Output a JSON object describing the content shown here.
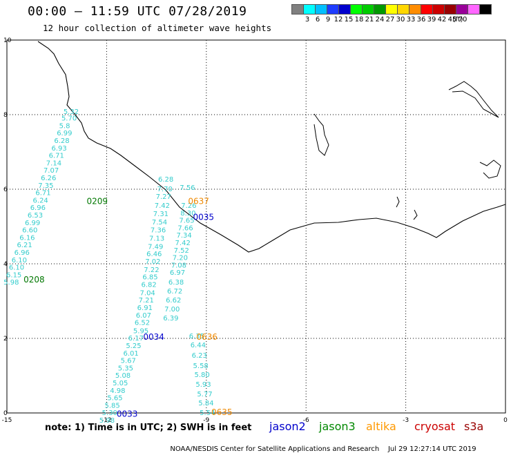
{
  "header": {
    "title": "00:00 — 11:59 UTC 07/28/2019",
    "subtitle": "12 hour collection of altimeter wave heights"
  },
  "color_scale": {
    "bins": [
      {
        "label": "",
        "color": "#808080"
      },
      {
        "label": "3",
        "color": "#00ffff"
      },
      {
        "label": "6",
        "color": "#00bfff"
      },
      {
        "label": "9",
        "color": "#1e3cff"
      },
      {
        "label": "12",
        "color": "#0000cd"
      },
      {
        "label": "15",
        "color": "#00ff00"
      },
      {
        "label": "18",
        "color": "#00cc00"
      },
      {
        "label": "21",
        "color": "#009900"
      },
      {
        "label": "24",
        "color": "#ffff00"
      },
      {
        "label": "27",
        "color": "#ffd700"
      },
      {
        "label": "30",
        "color": "#ff8c00"
      },
      {
        "label": "33",
        "color": "#ff0000"
      },
      {
        "label": "36",
        "color": "#cc0000"
      },
      {
        "label": "39",
        "color": "#990000"
      },
      {
        "label": "42",
        "color": "#990099"
      },
      {
        "label": "45",
        "color": "#ff66ff"
      },
      {
        "label": "70",
        "color": "#000000"
      }
    ],
    "unit": "(ft)"
  },
  "axes": {
    "x_ticks": [
      "-15",
      "-12",
      "-9",
      "-6",
      "-3",
      "0"
    ],
    "y_ticks": [
      "0",
      "2",
      "4",
      "6",
      "8",
      "10"
    ],
    "x_range": [
      -15,
      0
    ],
    "y_range": [
      0,
      10
    ],
    "grid": "dotted"
  },
  "tracks": [
    {
      "label": "0209",
      "color": "#007700",
      "label_at": [
        -12.6,
        5.6
      ],
      "points": [
        {
          "lon": -13.3,
          "lat": 8.02,
          "swh": "5.32"
        },
        {
          "lon": -13.36,
          "lat": 7.84,
          "swh": "5.70"
        },
        {
          "lon": -13.43,
          "lat": 7.64,
          "swh": "5.8"
        },
        {
          "lon": -13.5,
          "lat": 7.44,
          "swh": "6.99"
        },
        {
          "lon": -13.58,
          "lat": 7.24,
          "swh": "6.28"
        },
        {
          "lon": -13.66,
          "lat": 7.04,
          "swh": "6.93"
        },
        {
          "lon": -13.74,
          "lat": 6.84,
          "swh": "6.71"
        },
        {
          "lon": -13.82,
          "lat": 6.64,
          "swh": "7.14"
        },
        {
          "lon": -13.9,
          "lat": 6.44,
          "swh": "7.07"
        },
        {
          "lon": -13.98,
          "lat": 6.24,
          "swh": "6.26"
        },
        {
          "lon": -14.06,
          "lat": 6.04,
          "swh": "7.35"
        },
        {
          "lon": -14.14,
          "lat": 5.84,
          "swh": "6.71"
        },
        {
          "lon": -14.22,
          "lat": 5.64,
          "swh": "6.24"
        },
        {
          "lon": -14.3,
          "lat": 5.44,
          "swh": "6.96"
        },
        {
          "lon": -14.38,
          "lat": 5.24,
          "swh": "6.53"
        },
        {
          "lon": -14.46,
          "lat": 5.04,
          "swh": "6.99"
        },
        {
          "lon": -14.54,
          "lat": 4.84,
          "swh": "6.60"
        },
        {
          "lon": -14.62,
          "lat": 4.64,
          "swh": "6.16"
        },
        {
          "lon": -14.7,
          "lat": 4.44,
          "swh": "6.21"
        },
        {
          "lon": -14.78,
          "lat": 4.24,
          "swh": "6.96"
        },
        {
          "lon": -14.86,
          "lat": 4.04,
          "swh": "6.10"
        },
        {
          "lon": -14.94,
          "lat": 3.84,
          "swh": "6.10"
        },
        {
          "lon": -15.02,
          "lat": 3.64,
          "swh": "6.15"
        },
        {
          "lon": -15.1,
          "lat": 3.44,
          "swh": "5.98"
        }
      ]
    },
    {
      "label": "0208",
      "color": "#007700",
      "label_at": [
        -14.5,
        3.5
      ],
      "points": []
    },
    {
      "label": "0637",
      "color": "#ee8800",
      "label_at": [
        -9.55,
        5.6
      ],
      "points": [
        {
          "lon": -9.8,
          "lat": 5.98,
          "swh": "7.56"
        },
        {
          "lon": -9.76,
          "lat": 5.5,
          "swh": "7.26"
        },
        {
          "lon": -9.78,
          "lat": 5.3,
          "swh": "8.30"
        },
        {
          "lon": -9.82,
          "lat": 5.1,
          "swh": "7.65"
        },
        {
          "lon": -9.86,
          "lat": 4.9,
          "swh": "7.66"
        },
        {
          "lon": -9.9,
          "lat": 4.7,
          "swh": "7.34"
        },
        {
          "lon": -9.94,
          "lat": 4.5,
          "swh": "7.42"
        },
        {
          "lon": -9.98,
          "lat": 4.3,
          "swh": "7.52"
        },
        {
          "lon": -10.02,
          "lat": 4.1,
          "swh": "7.20"
        },
        {
          "lon": -10.06,
          "lat": 3.9,
          "swh": "7.08"
        },
        {
          "lon": -10.1,
          "lat": 3.7,
          "swh": "6.97"
        },
        {
          "lon": -10.14,
          "lat": 3.44,
          "swh": "6.38"
        },
        {
          "lon": -10.18,
          "lat": 3.2,
          "swh": "6.72"
        },
        {
          "lon": -10.22,
          "lat": 2.96,
          "swh": "6.62"
        },
        {
          "lon": -10.26,
          "lat": 2.72,
          "swh": "7.00"
        },
        {
          "lon": -10.3,
          "lat": 2.48,
          "swh": "6.39"
        }
      ]
    },
    {
      "label": "0636",
      "color": "#ee8800",
      "label_at": [
        -9.3,
        1.96
      ],
      "points": [
        {
          "lon": -9.52,
          "lat": 2.0,
          "swh": "6.35"
        },
        {
          "lon": -9.48,
          "lat": 1.76,
          "swh": "6.44"
        },
        {
          "lon": -9.44,
          "lat": 1.48,
          "swh": "6.23"
        },
        {
          "lon": -9.4,
          "lat": 1.2,
          "swh": "5.58"
        },
        {
          "lon": -9.36,
          "lat": 0.96,
          "swh": "5.80"
        },
        {
          "lon": -9.32,
          "lat": 0.7,
          "swh": "5.93"
        },
        {
          "lon": -9.28,
          "lat": 0.44,
          "swh": "5.77"
        },
        {
          "lon": -9.24,
          "lat": 0.2,
          "swh": "5.84"
        },
        {
          "lon": -9.2,
          "lat": -0.06,
          "swh": "5.54"
        }
      ]
    },
    {
      "label": "0635",
      "color": "#ee8800",
      "label_at": [
        -8.85,
        -0.06
      ],
      "points": []
    },
    {
      "label": "0035",
      "color": "#0000cc",
      "label_at": [
        -9.4,
        5.18
      ],
      "points": [
        {
          "lon": -10.45,
          "lat": 6.2,
          "swh": "6.28"
        },
        {
          "lon": -10.48,
          "lat": 5.94,
          "swh": "7.70"
        },
        {
          "lon": -10.52,
          "lat": 5.74,
          "swh": "7.27"
        },
        {
          "lon": -10.56,
          "lat": 5.5,
          "swh": "7.42"
        },
        {
          "lon": -10.6,
          "lat": 5.28,
          "swh": "7.31"
        },
        {
          "lon": -10.64,
          "lat": 5.06,
          "swh": "7.54"
        },
        {
          "lon": -10.68,
          "lat": 4.84,
          "swh": "7.36"
        },
        {
          "lon": -10.72,
          "lat": 4.62,
          "swh": "7.13"
        },
        {
          "lon": -10.76,
          "lat": 4.4,
          "swh": "7.49"
        },
        {
          "lon": -10.8,
          "lat": 4.2,
          "swh": "6.46"
        },
        {
          "lon": -10.84,
          "lat": 4.0,
          "swh": "7.02"
        },
        {
          "lon": -10.88,
          "lat": 3.78,
          "swh": "7.22"
        },
        {
          "lon": -10.92,
          "lat": 3.58,
          "swh": "6.85"
        },
        {
          "lon": -10.96,
          "lat": 3.38,
          "swh": "6.82"
        },
        {
          "lon": -11.0,
          "lat": 3.16,
          "swh": "7.04"
        },
        {
          "lon": -11.04,
          "lat": 2.96,
          "swh": "7.21"
        },
        {
          "lon": -11.08,
          "lat": 2.76,
          "swh": "6.91"
        },
        {
          "lon": -11.12,
          "lat": 2.56,
          "swh": "6.07"
        },
        {
          "lon": -11.16,
          "lat": 2.36,
          "swh": "6.52"
        },
        {
          "lon": -11.2,
          "lat": 2.14,
          "swh": "5.95"
        }
      ]
    },
    {
      "label": "0034",
      "color": "#0000cc",
      "label_at": [
        -10.9,
        1.96
      ],
      "points": [
        {
          "lon": -11.35,
          "lat": 1.94,
          "swh": "6.17"
        },
        {
          "lon": -11.42,
          "lat": 1.74,
          "swh": "5.25"
        },
        {
          "lon": -11.5,
          "lat": 1.54,
          "swh": "6.01"
        },
        {
          "lon": -11.58,
          "lat": 1.34,
          "swh": "5.67"
        },
        {
          "lon": -11.66,
          "lat": 1.14,
          "swh": "5.35"
        },
        {
          "lon": -11.74,
          "lat": 0.94,
          "swh": "5.08"
        },
        {
          "lon": -11.82,
          "lat": 0.74,
          "swh": "5.05"
        },
        {
          "lon": -11.9,
          "lat": 0.54,
          "swh": "4.98"
        },
        {
          "lon": -11.98,
          "lat": 0.34,
          "swh": "5.65"
        },
        {
          "lon": -12.06,
          "lat": 0.14,
          "swh": "5.85"
        },
        {
          "lon": -12.14,
          "lat": -0.06,
          "swh": "5.30"
        },
        {
          "lon": -12.22,
          "lat": -0.26,
          "swh": "5.98"
        }
      ]
    },
    {
      "label": "0033",
      "color": "#0000cc",
      "label_at": [
        -11.7,
        -0.1
      ],
      "points": []
    }
  ],
  "footer": {
    "note": "note: 1) Time is in UTC; 2) SWH is in feet",
    "legend": [
      {
        "name": "jason2",
        "color": "#0000cc"
      },
      {
        "name": "jason3",
        "color": "#008800"
      },
      {
        "name": "altika",
        "color": "#ff9900"
      },
      {
        "name": "cryosat",
        "color": "#cc0000"
      },
      {
        "name": "s3a",
        "color": "#990000"
      }
    ],
    "credit": "NOAA/NESDIS Center for Satellite Applications and Research",
    "timestamp": "Jul 29 12:27:14 UTC 2019"
  }
}
